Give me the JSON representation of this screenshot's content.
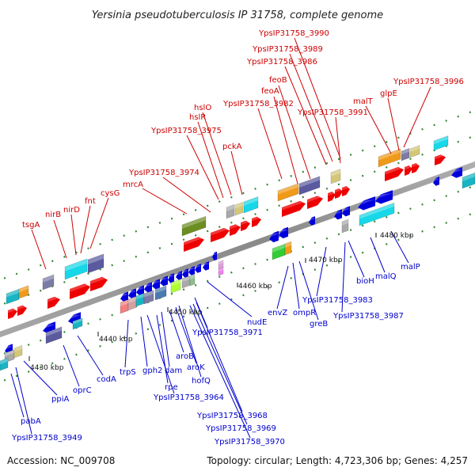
{
  "title": "Yersinia pseudotuberculosis IP 31758, complete genome",
  "footer": {
    "accession": "Accession: NC_009708",
    "topology": "Topology: circular; Length: 4,723,306 bp; Genes: 4,257"
  },
  "kbp_labels": [
    "4430 kbp",
    "4440 kbp",
    "4450 kbp",
    "4460 kbp",
    "4470 kbp",
    "4480 kbp"
  ],
  "labels_top": [
    "YpsIP31758_3990",
    "YpsIP31758_3989",
    "YpsIP31758_3986",
    "feoB",
    "feoA",
    "YpsIP31758_3982",
    "YpsIP31758_3991",
    "malT",
    "glpE",
    "YpsIP31758_3996",
    "hslO",
    "hslR",
    "YpsIP31758_3975",
    "pckA",
    "YpsIP31758_3974",
    "mrcA",
    "cysG",
    "fnt",
    "nirD",
    "nirB",
    "tsgA"
  ],
  "labels_bottom": [
    "malP",
    "malQ",
    "bioH",
    "YpsIP31758_3987",
    "YpsIP31758_3983",
    "greB",
    "ompR",
    "envZ",
    "nudE",
    "YpsIP31758_3971",
    "hofQ",
    "aroK",
    "aroB",
    "dam",
    "rpe",
    "gph2",
    "trpS",
    "YpsIP31758_3964",
    "YpsIP31758_3968",
    "YpsIP31758_3969",
    "YpsIP31758_3970",
    "codA",
    "oprC",
    "ppiA",
    "pabA",
    "YpsIP31758_3949"
  ],
  "colors": {
    "forward": "#ee0000",
    "reverse": "#0000dd",
    "label_forward": "#cc0000",
    "label_reverse": "#0000cc",
    "backbone": "#888888",
    "tick": "#228822"
  }
}
